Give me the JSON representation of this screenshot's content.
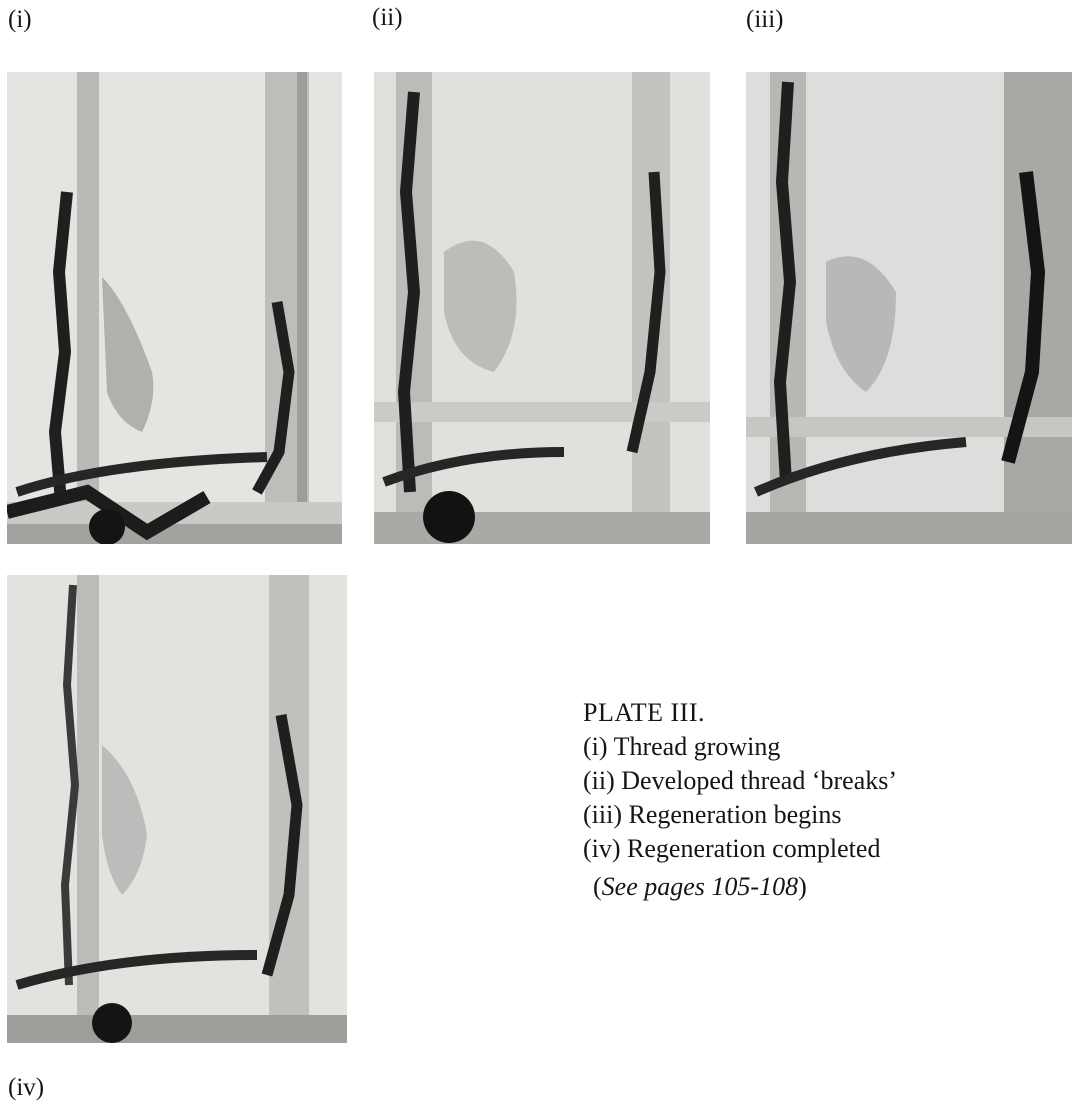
{
  "panels": [
    {
      "label": "(i)"
    },
    {
      "label": "(ii)"
    },
    {
      "label": "(iii)"
    },
    {
      "label": "(iv)"
    }
  ],
  "caption": {
    "title": "PLATE III.",
    "items": [
      "(i) Thread growing",
      "(ii) Developed thread ‘breaks’",
      "(iii) Regeneration begins",
      "(iv) Regeneration completed"
    ],
    "ref_open": "(",
    "ref_italic": "See pages 105-108",
    "ref_close": ")"
  }
}
